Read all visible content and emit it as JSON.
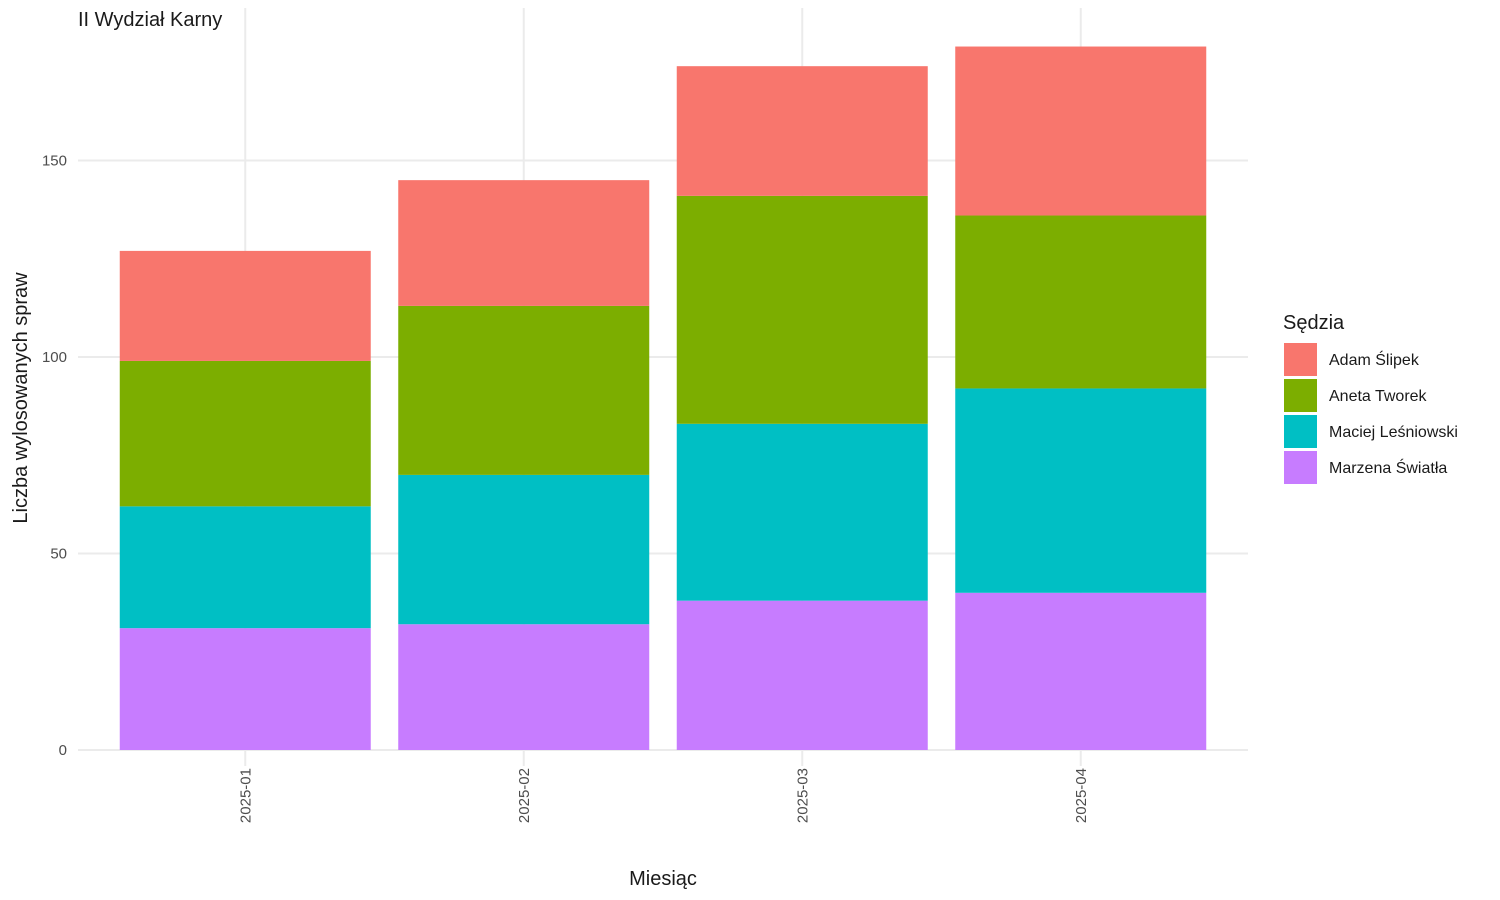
{
  "chart_data": {
    "type": "bar",
    "stacked": true,
    "title": "II Wydział Karny",
    "xlabel": "Miesiąc",
    "ylabel": "Liczba wylosowanych spraw",
    "categories": [
      "2025-01",
      "2025-02",
      "2025-03",
      "2025-04"
    ],
    "ylim": [
      0,
      180
    ],
    "yticks": [
      0,
      50,
      100,
      150
    ],
    "grid": true,
    "legend": {
      "title": "Sędzia",
      "placement": "right"
    },
    "series": [
      {
        "name": "Marzena Światła",
        "color": "#C77CFF",
        "values": [
          31,
          32,
          38,
          40
        ]
      },
      {
        "name": "Maciej Leśniowski",
        "color": "#00BFC4",
        "values": [
          31,
          38,
          45,
          52
        ]
      },
      {
        "name": "Aneta Tworek",
        "color": "#7CAE00",
        "values": [
          37,
          43,
          58,
          44
        ]
      },
      {
        "name": "Adam Ślipek",
        "color": "#F8766D",
        "values": [
          28,
          32,
          33,
          43
        ]
      }
    ],
    "legend_order": [
      "Adam Ślipek",
      "Aneta Tworek",
      "Maciej Leśniowski",
      "Marzena Światła"
    ]
  }
}
